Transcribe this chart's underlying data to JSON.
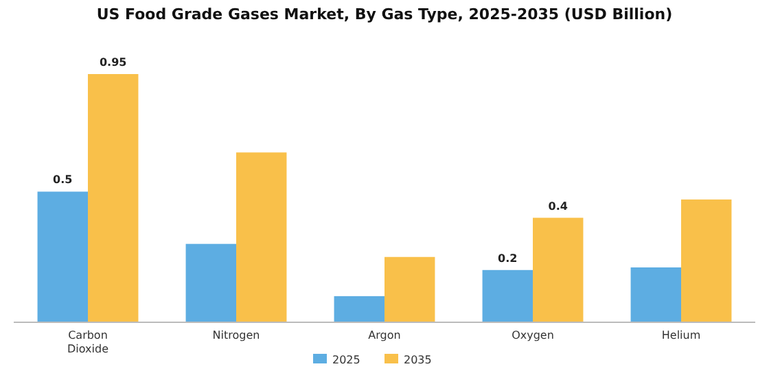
{
  "chart_data": {
    "type": "bar",
    "title": "US Food Grade Gases Market, By Gas Type, 2025-2035 (USD Billion)",
    "categories": [
      "Carbon Dioxide",
      "Nitrogen",
      "Argon",
      "Oxygen",
      "Helium"
    ],
    "series": [
      {
        "name": "2025",
        "color": "#5dade2",
        "values": [
          0.5,
          0.3,
          0.1,
          0.2,
          0.21
        ],
        "value_labels": [
          "0.5",
          null,
          null,
          "0.2",
          null
        ]
      },
      {
        "name": "2035",
        "color": "#f9c04a",
        "values": [
          0.95,
          0.65,
          0.25,
          0.4,
          0.47
        ],
        "value_labels": [
          "0.95",
          null,
          null,
          "0.4",
          null
        ]
      }
    ],
    "legend": "bottom"
  }
}
